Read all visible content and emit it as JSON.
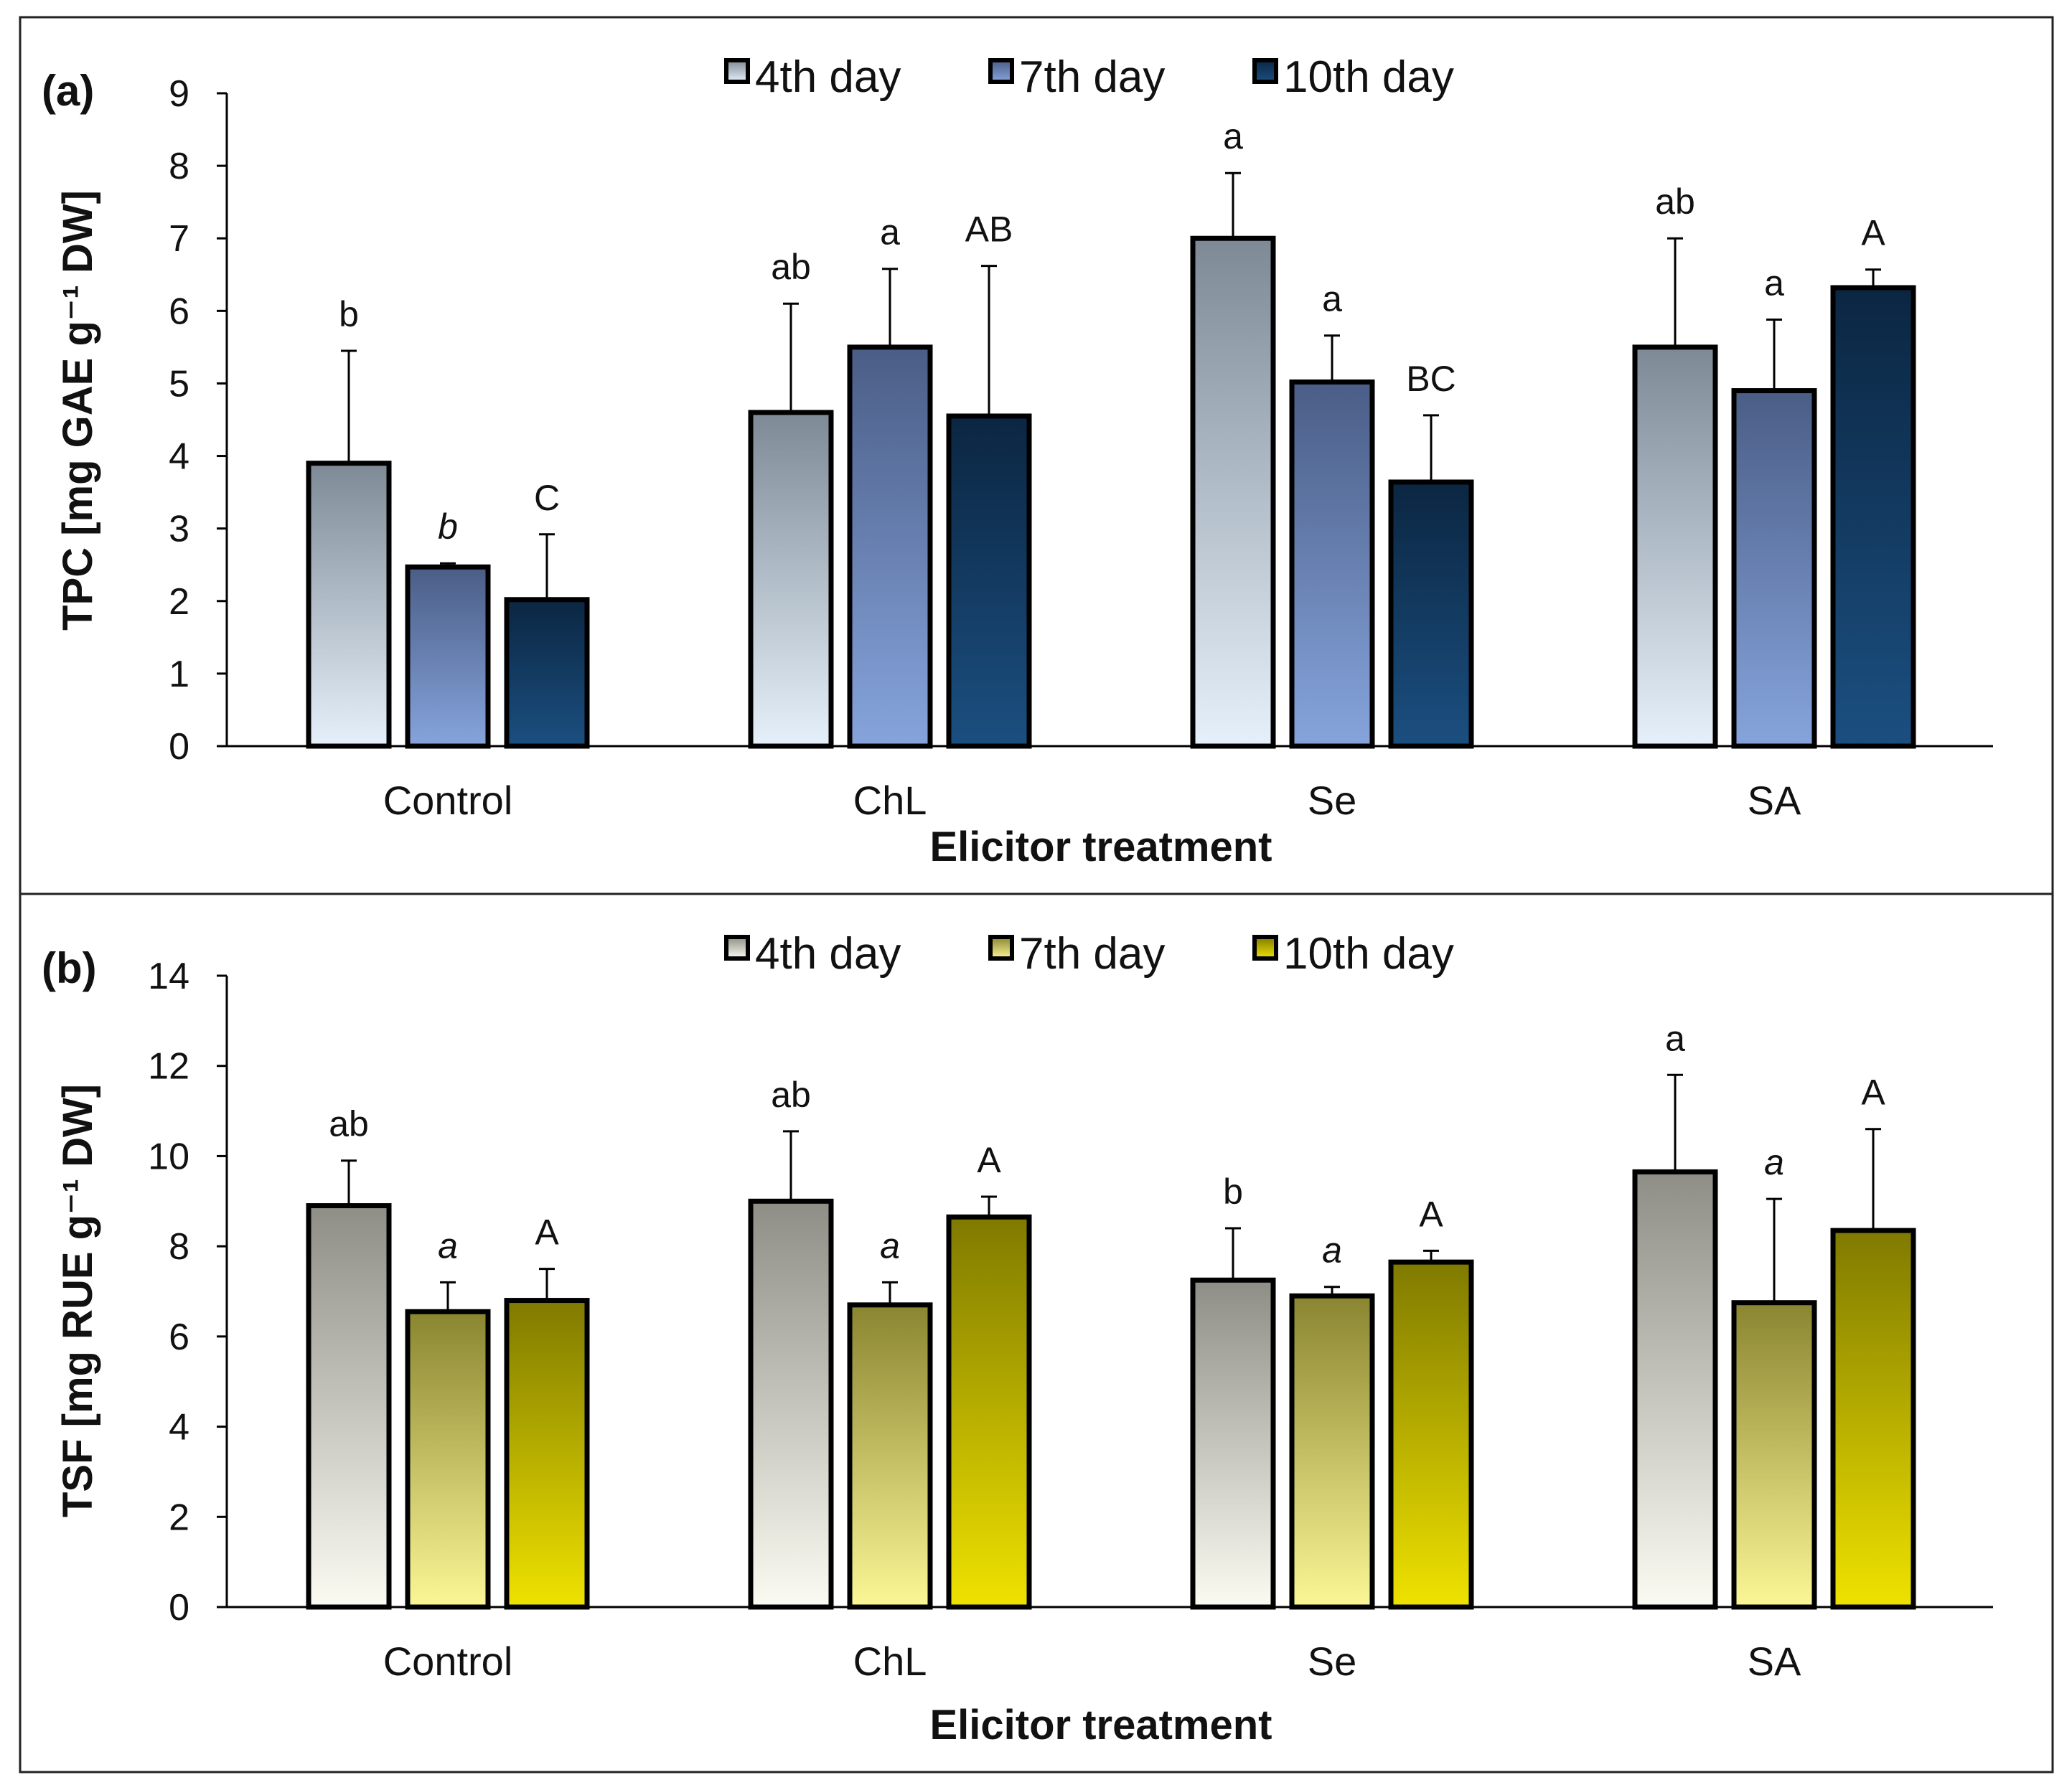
{
  "chart_data": [
    {
      "type": "bar",
      "panel_label": "(a)",
      "ylabel": "TPC [mg GAE g⁻¹ DW]",
      "xlabel": "Elicitor treatment",
      "ylim": [
        0,
        9
      ],
      "ytick_step": 1,
      "categories": [
        "Control",
        "ChL",
        "Se",
        "SA"
      ],
      "series": [
        {
          "name": "4th day",
          "values": [
            3.9,
            4.6,
            7.0,
            5.5
          ],
          "errors": [
            1.55,
            1.5,
            0.9,
            1.5
          ],
          "labels": [
            "b",
            "ab",
            "a",
            "ab"
          ],
          "italic": [
            false,
            false,
            false,
            false
          ]
        },
        {
          "name": "7th day",
          "values": [
            2.47,
            5.5,
            5.02,
            4.9
          ],
          "errors": [
            0.05,
            1.08,
            0.64,
            0.98
          ],
          "labels": [
            "b",
            "a",
            "a",
            "a"
          ],
          "italic": [
            true,
            false,
            false,
            false
          ]
        },
        {
          "name": "10th day",
          "values": [
            2.02,
            4.55,
            3.64,
            6.32
          ],
          "errors": [
            0.9,
            2.07,
            0.92,
            0.25
          ],
          "labels": [
            "C",
            "AB",
            "BC",
            "A"
          ],
          "italic": [
            false,
            false,
            false,
            false
          ]
        }
      ],
      "legend_position": "top"
    },
    {
      "type": "bar",
      "panel_label": "(b)",
      "ylabel": "TSF [mg RUE g⁻¹ DW]",
      "xlabel": "Elicitor treatment",
      "ylim": [
        0,
        14
      ],
      "ytick_step": 2,
      "categories": [
        "Control",
        "ChL",
        "Se",
        "SA"
      ],
      "series": [
        {
          "name": "4th day",
          "values": [
            8.9,
            9.0,
            7.25,
            9.65
          ],
          "errors": [
            1.0,
            1.55,
            1.15,
            2.15
          ],
          "labels": [
            "ab",
            "ab",
            "b",
            "a"
          ],
          "italic": [
            false,
            false,
            false,
            false
          ]
        },
        {
          "name": "7th day",
          "values": [
            6.55,
            6.7,
            6.9,
            6.75
          ],
          "errors": [
            0.65,
            0.5,
            0.2,
            2.3
          ],
          "labels": [
            "a",
            "a",
            "a",
            "a"
          ],
          "italic": [
            true,
            true,
            true,
            true
          ]
        },
        {
          "name": "10th day",
          "values": [
            6.8,
            8.65,
            7.65,
            8.35
          ],
          "errors": [
            0.7,
            0.45,
            0.25,
            2.25
          ],
          "labels": [
            "A",
            "A",
            "A",
            "A"
          ],
          "italic": [
            false,
            false,
            false,
            false
          ]
        }
      ],
      "legend_position": "top"
    }
  ],
  "colors": {
    "panel_a": {
      "4th day": [
        "#e6f0fa",
        "#7d8a96"
      ],
      "7th day": [
        "#86a4dc",
        "#4a5d86"
      ],
      "10th day": [
        "#1b4f80",
        "#0b2642"
      ]
    },
    "panel_b": {
      "4th day": [
        "#fbfbf2",
        "#8e8e86"
      ],
      "7th day": [
        "#fbf796",
        "#8a8530"
      ],
      "10th day": [
        "#efe200",
        "#7f7a00"
      ]
    }
  }
}
